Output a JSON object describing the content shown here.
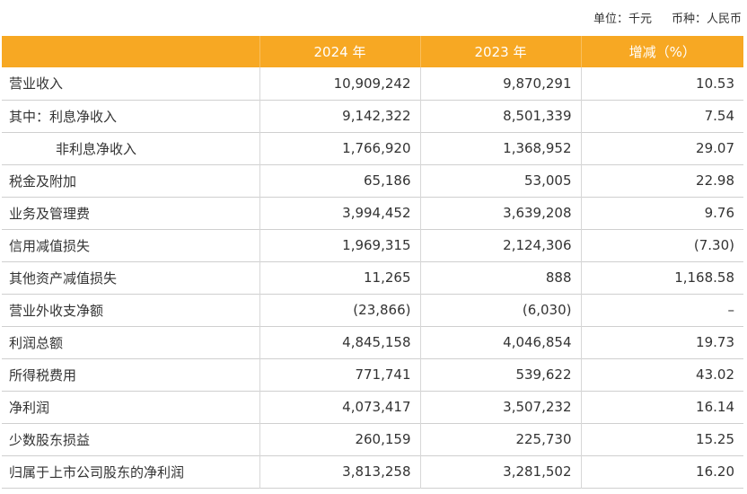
{
  "unit_note": {
    "unit": "单位：千元",
    "currency": "币种：人民币"
  },
  "table": {
    "headers": [
      "",
      "2024 年",
      "2023 年",
      "增减（%）"
    ],
    "rows": [
      {
        "label": "营业收入",
        "y2024": "10,909,242",
        "y2023": "9,870,291",
        "change": "10.53"
      },
      {
        "label": "其中：利息净收入",
        "y2024": "9,142,322",
        "y2023": "8,501,339",
        "change": "7.54"
      },
      {
        "label": "非利息净收入",
        "y2024": "1,766,920",
        "y2023": "1,368,952",
        "change": "29.07"
      },
      {
        "label": "税金及附加",
        "y2024": "65,186",
        "y2023": "53,005",
        "change": "22.98"
      },
      {
        "label": "业务及管理费",
        "y2024": "3,994,452",
        "y2023": "3,639,208",
        "change": "9.76"
      },
      {
        "label": "信用减值损失",
        "y2024": "1,969,315",
        "y2023": "2,124,306",
        "change": "(7.30)"
      },
      {
        "label": "其他资产减值损失",
        "y2024": "11,265",
        "y2023": "888",
        "change": "1,168.58"
      },
      {
        "label": "营业外收支净额",
        "y2024": "(23,866)",
        "y2023": "(6,030)",
        "change": "–"
      },
      {
        "label": "利润总额",
        "y2024": "4,845,158",
        "y2023": "4,046,854",
        "change": "19.73"
      },
      {
        "label": "所得税费用",
        "y2024": "771,741",
        "y2023": "539,622",
        "change": "43.02"
      },
      {
        "label": "净利润",
        "y2024": "4,073,417",
        "y2023": "3,507,232",
        "change": "16.14"
      },
      {
        "label": "少数股东损益",
        "y2024": "260,159",
        "y2023": "225,730",
        "change": "15.25"
      },
      {
        "label": "归属于上市公司股东的净利润",
        "y2024": "3,813,258",
        "y2023": "3,281,502",
        "change": "16.20"
      }
    ]
  }
}
